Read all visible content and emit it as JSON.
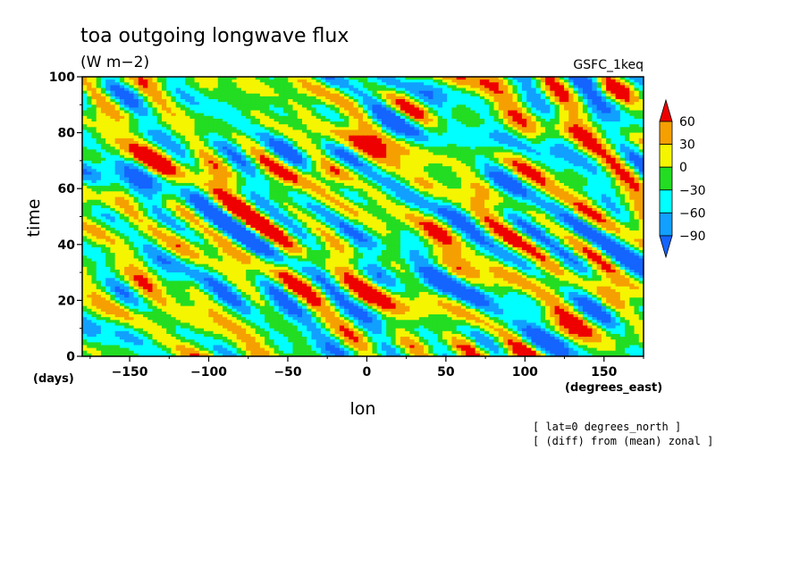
{
  "chart_data": {
    "type": "heatmap",
    "title": "toa outgoing longwave flux",
    "units": "(W m−2)",
    "dataset": "GSFC_1keq",
    "xlabel": "lon",
    "xunit": "(degrees_east)",
    "ylabel": "time",
    "yunit": "(days)",
    "xlim": [
      -180,
      175
    ],
    "ylim": [
      0,
      100
    ],
    "xticks": [
      -150,
      -100,
      -50,
      0,
      50,
      100,
      150
    ],
    "xtick_labels": [
      "−150",
      "−100",
      "−50",
      "0",
      "50",
      "100",
      "150"
    ],
    "yticks": [
      0,
      20,
      40,
      60,
      80,
      100
    ],
    "ytick_labels": [
      "0",
      "20",
      "40",
      "60",
      "80",
      "100"
    ],
    "notes": [
      "[ lat=0 degrees_north ]",
      "[ (diff) from (mean) zonal ]"
    ],
    "colorbar": {
      "levels": [
        60,
        30,
        0,
        -30,
        -60,
        -90
      ],
      "labels": [
        "60",
        "30",
        "0",
        "−30",
        "−60",
        "−90"
      ],
      "colors_high_to_low": [
        "#ee0000",
        "#f5a000",
        "#f5f500",
        "#22dd22",
        "#00ffff",
        "#11a0ff",
        "#1464ff"
      ]
    },
    "field_description": "noisy anomaly field with eastward-tilted streaks; strong positive anomaly band near lon -60 to 0, time 62-72"
  }
}
